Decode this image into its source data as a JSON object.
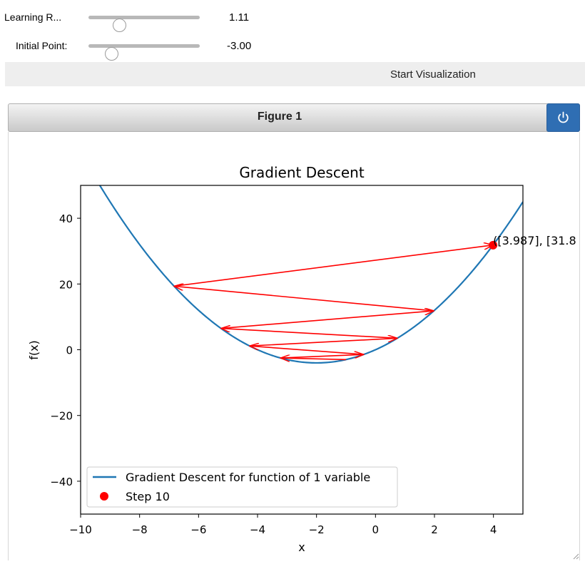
{
  "controls": {
    "learning_rate": {
      "label": "Learning R...",
      "value": "1.11",
      "fraction": 0.28
    },
    "initial_point": {
      "label": "Initial Point:",
      "value": "-3.00",
      "fraction": 0.21
    },
    "start_button": "Start Visualization"
  },
  "figure": {
    "header_title": "Figure 1",
    "power_icon": "power-icon",
    "resize_icon": "resize-grip-icon"
  },
  "chart_data": {
    "type": "line",
    "title": "Gradient Descent",
    "xlabel": "x",
    "ylabel": "f(x)",
    "xlim": [
      -10,
      5
    ],
    "ylim": [
      -50,
      50
    ],
    "xticks": [
      -10,
      -8,
      -6,
      -4,
      -2,
      0,
      2,
      4
    ],
    "xtick_labels": [
      "−10",
      "−8",
      "−6",
      "−4",
      "−2",
      "0",
      "2",
      "4"
    ],
    "yticks": [
      -40,
      -20,
      0,
      20,
      40
    ],
    "ytick_labels": [
      "−40",
      "−20",
      "0",
      "20",
      "40"
    ],
    "curve": {
      "formula": "x^2 + 4x",
      "x_range": [
        -10,
        5
      ]
    },
    "steps_x": [
      -1.0,
      -3.22,
      -0.4,
      -4.27,
      0.74,
      -5.24,
      1.98,
      -6.83,
      3.987
    ],
    "current_point": {
      "x": 3.987,
      "y": 31.8
    },
    "annotation": "([3.987], [31.8",
    "series": [
      {
        "name": "Gradient Descent for function of 1 variable",
        "color": "#1f77b4"
      },
      {
        "name": "Step 10",
        "color": "#ff0000"
      }
    ],
    "arrow_color": "#ff0000",
    "legend_position": "lower-left"
  }
}
